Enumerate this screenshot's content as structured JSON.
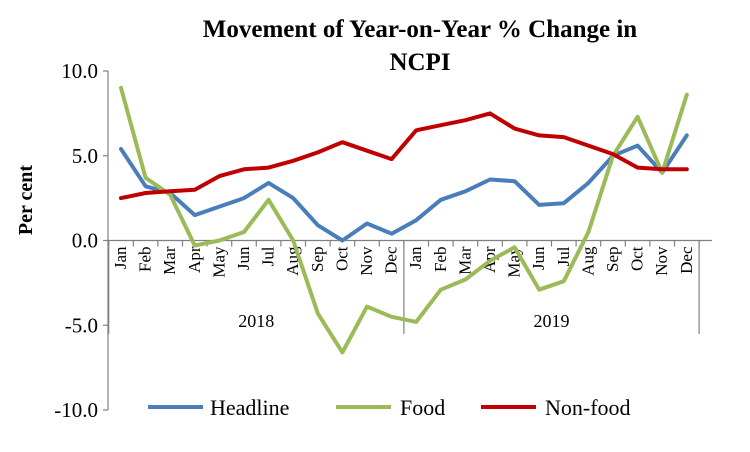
{
  "chart_data": {
    "type": "line",
    "title": "Movement of Year-on-Year % Change in NCPI",
    "title_lines": [
      "Movement of Year-on-Year % Change in",
      "NCPI"
    ],
    "ylabel": "Per cent",
    "xlabel": "",
    "ylim": [
      -10.0,
      10.0
    ],
    "yticks": [
      10.0,
      5.0,
      0.0,
      -5.0,
      -10.0
    ],
    "ytick_labels": [
      "10.0",
      "5.0",
      "0.0",
      "-5.0",
      "-10.0"
    ],
    "categories": [
      "Jan",
      "Feb",
      "Mar",
      "Apr",
      "May",
      "Jun",
      "Jul",
      "Aug",
      "Sep",
      "Oct",
      "Nov",
      "Dec",
      "Jan",
      "Feb",
      "Mar",
      "Apr",
      "May",
      "Jun",
      "Jul",
      "Aug",
      "Sep",
      "Oct",
      "Nov",
      "Dec"
    ],
    "groups": [
      {
        "label": "2018",
        "start": 0,
        "end": 11
      },
      {
        "label": "2019",
        "start": 12,
        "end": 23
      }
    ],
    "legend_position": "bottom",
    "series": [
      {
        "name": "Headline",
        "color": "#4a7ebb",
        "values": [
          5.4,
          3.2,
          2.8,
          1.5,
          2.0,
          2.5,
          3.4,
          2.5,
          0.9,
          0.0,
          1.0,
          0.4,
          1.2,
          2.4,
          2.9,
          3.6,
          3.5,
          2.1,
          2.2,
          3.4,
          5.0,
          5.6,
          4.0,
          6.2
        ]
      },
      {
        "name": "Food",
        "color": "#9bbb59",
        "values": [
          9.0,
          3.7,
          2.7,
          -0.3,
          0.0,
          0.5,
          2.4,
          0.0,
          -4.3,
          -6.6,
          -3.9,
          -4.5,
          -4.8,
          -2.9,
          -2.3,
          -1.2,
          -0.4,
          -2.9,
          -2.4,
          0.5,
          5.0,
          7.3,
          4.0,
          8.6
        ]
      },
      {
        "name": "Non-food",
        "color": "#c00000",
        "values": [
          2.5,
          2.8,
          2.9,
          3.0,
          3.8,
          4.2,
          4.3,
          4.7,
          5.2,
          5.8,
          5.3,
          4.8,
          6.5,
          6.8,
          7.1,
          7.5,
          6.6,
          6.2,
          6.1,
          5.6,
          5.1,
          4.3,
          4.2,
          4.2
        ]
      }
    ]
  }
}
